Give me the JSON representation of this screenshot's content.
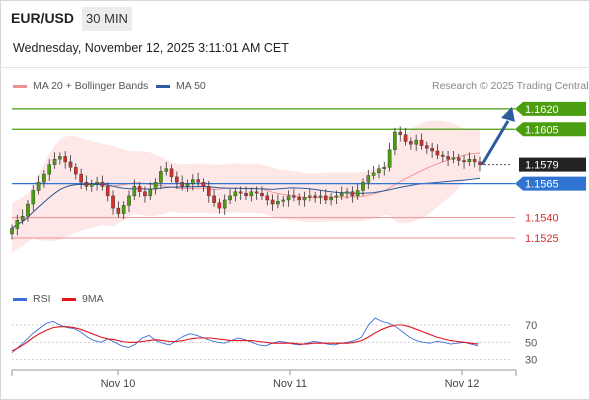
{
  "header": {
    "symbol": "EUR/USD",
    "timeframe": "30 MIN",
    "datetime": "Wednesday, November 12, 2025 3:11:01 AM CET",
    "credit": "Research © 2025 Trading Central"
  },
  "legend": {
    "bollinger_label": "MA 20 + Bollinger Bands",
    "ma50_label": "MA 50",
    "rsi_label": "RSI",
    "rsi_ma_label": "9MA"
  },
  "colors": {
    "bollinger": "#f08f8f",
    "bollinger_fill": "#fde3e3",
    "ma50": "#2e5b9e",
    "resistance": "#4a9e0f",
    "support": "#f08f8f",
    "pivot": "#2f74d0",
    "last_price": "#222222",
    "up_candle": "#4a9e0f",
    "down_candle": "#d0312d",
    "rsi": "#3b6fd8",
    "rsi_ma": "#e0151d",
    "arrow": "#2e5b9e"
  },
  "chart_data": [
    {
      "type": "candlestick",
      "title": "EUR/USD 30 MIN",
      "x_tick_labels": [
        "Nov 10",
        "Nov 11",
        "Nov 12"
      ],
      "ylim": [
        1.15,
        1.1628
      ],
      "series": [
        {
          "name": "MA 20 + Bollinger Bands"
        },
        {
          "name": "MA 50"
        }
      ],
      "levels": [
        {
          "value": 1.162,
          "label": "1.1620",
          "kind": "resistance"
        },
        {
          "value": 1.1605,
          "label": "1.1605",
          "kind": "resistance"
        },
        {
          "value": 1.1579,
          "label": "1.1579",
          "kind": "last"
        },
        {
          "value": 1.1565,
          "label": "1.1565",
          "kind": "pivot"
        },
        {
          "value": 1.154,
          "label": "1.1540",
          "kind": "support"
        },
        {
          "value": 1.1525,
          "label": "1.1525",
          "kind": "support"
        }
      ],
      "closes": [
        1.1532,
        1.1538,
        1.1541,
        1.155,
        1.156,
        1.1566,
        1.1572,
        1.1579,
        1.1583,
        1.1585,
        1.1581,
        1.1577,
        1.1572,
        1.1566,
        1.1563,
        1.1565,
        1.1566,
        1.1563,
        1.1556,
        1.1547,
        1.1543,
        1.1549,
        1.1556,
        1.1563,
        1.1559,
        1.1556,
        1.1561,
        1.1566,
        1.1574,
        1.1576,
        1.157,
        1.1566,
        1.1563,
        1.1565,
        1.1568,
        1.1566,
        1.1563,
        1.1556,
        1.1551,
        1.1547,
        1.1553,
        1.1556,
        1.1559,
        1.1558,
        1.1556,
        1.1559,
        1.1558,
        1.1556,
        1.1553,
        1.155,
        1.1552,
        1.1553,
        1.1556,
        1.1555,
        1.1553,
        1.1555,
        1.1556,
        1.1555,
        1.1556,
        1.1553,
        1.1555,
        1.1556,
        1.1558,
        1.1559,
        1.1556,
        1.156,
        1.1566,
        1.1571,
        1.1573,
        1.1576,
        1.1577,
        1.159,
        1.1603,
        1.1601,
        1.1596,
        1.1594,
        1.1597,
        1.1593,
        1.1591,
        1.1589,
        1.1586,
        1.1585,
        1.1583,
        1.1584,
        1.1582,
        1.1581,
        1.1583,
        1.1581,
        1.1579
      ],
      "projection": {
        "from": 1.1579,
        "to": 1.162
      }
    },
    {
      "type": "line",
      "title": "RSI",
      "series": [
        {
          "name": "RSI",
          "values": [
            38,
            45,
            52,
            60,
            66,
            72,
            74,
            70,
            67,
            66,
            62,
            56,
            52,
            50,
            54,
            50,
            46,
            44,
            48,
            55,
            58,
            52,
            49,
            47,
            52,
            57,
            60,
            58,
            55,
            52,
            50,
            49,
            52,
            55,
            53,
            50,
            47,
            46,
            49,
            51,
            50,
            48,
            47,
            49,
            51,
            50,
            48,
            47,
            49,
            50,
            52,
            56,
            70,
            78,
            74,
            72,
            68,
            62,
            56,
            52,
            50,
            49,
            51,
            50,
            48,
            49,
            50,
            48,
            46
          ]
        },
        {
          "name": "9MA",
          "values": [
            40,
            44,
            49,
            55,
            60,
            64,
            67,
            68,
            68,
            67,
            65,
            62,
            59,
            56,
            54,
            53,
            51,
            50,
            50,
            51,
            52,
            53,
            52,
            51,
            51,
            52,
            54,
            55,
            55,
            55,
            54,
            53,
            52,
            52,
            52,
            52,
            51,
            50,
            49,
            49,
            49,
            49,
            48,
            48,
            49,
            49,
            49,
            49,
            49,
            49,
            50,
            52,
            56,
            61,
            65,
            68,
            70,
            70,
            68,
            65,
            62,
            59,
            56,
            54,
            52,
            51,
            50,
            49,
            48
          ]
        }
      ],
      "y_tick_labels": [
        "70",
        "50",
        "30"
      ],
      "ylim": [
        25,
        85
      ]
    }
  ]
}
